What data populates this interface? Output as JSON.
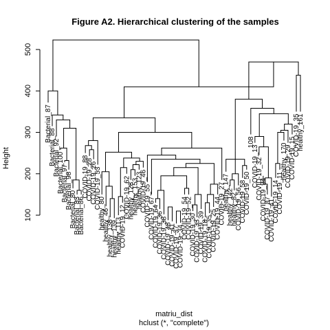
{
  "chart_data": {
    "type": "dendrogram",
    "title": "Figure A2. Hierarchical clustering of the samples",
    "xlabel": "matriu_dist",
    "sublabel": "hclust (*, \"complete\")",
    "ylabel": "Height",
    "ylim": [
      100,
      500
    ],
    "yticks": [
      100,
      200,
      300,
      400,
      500
    ],
    "grid": false,
    "leaves": [
      {
        "label": "Bacterial_87",
        "h": 372
      },
      {
        "label": "Bacterial_88",
        "h": 315
      },
      {
        "label": "Bacterial_92",
        "h": 290
      },
      {
        "label": "Bacterial_100",
        "h": 258
      },
      {
        "label": "Bacterial_97",
        "h": 228
      },
      {
        "label": "Bacterial_98",
        "h": 210
      },
      {
        "label": "Bacterial_80",
        "h": 165
      },
      {
        "label": "Bacterial_83",
        "h": 150
      },
      {
        "label": "Bacterial_86",
        "h": 150
      },
      {
        "label": "COVID-19_88",
        "h": 250
      },
      {
        "label": "COVID-19_28",
        "h": 243
      },
      {
        "label": "COVID-19_26",
        "h": 235
      },
      {
        "label": "COVID-19_53",
        "h": 222
      },
      {
        "label": "healthy_80",
        "h": 150
      },
      {
        "label": "healthy_46",
        "h": 122
      },
      {
        "label": "healthy_138",
        "h": 95
      },
      {
        "label": "healthy_139",
        "h": 93
      },
      {
        "label": "healthy_113",
        "h": 100
      },
      {
        "label": "COVID-19_12",
        "h": 130
      },
      {
        "label": "COVID-19_62",
        "h": 200
      },
      {
        "label": "healthy_128",
        "h": 185
      },
      {
        "label": "healthy_153",
        "h": 195
      },
      {
        "label": "healthy_123",
        "h": 210
      },
      {
        "label": "COVID-19_46",
        "h": 215
      },
      {
        "label": "COVID-19_55",
        "h": 180
      },
      {
        "label": "COVID-19_67",
        "h": 150
      },
      {
        "label": "COVID-19_64",
        "h": 130
      },
      {
        "label": "COVID-19_36",
        "h": 115
      },
      {
        "label": "COVID-19_38",
        "h": 102
      },
      {
        "label": "COVID-19_48",
        "h": 88
      },
      {
        "label": "COVID-19_41",
        "h": 85
      },
      {
        "label": "COVID-19_37",
        "h": 80
      },
      {
        "label": "COVID-19_34",
        "h": 82
      },
      {
        "label": "COVID-19_54",
        "h": 150
      },
      {
        "label": "COVID-19_52",
        "h": 150
      },
      {
        "label": "COVID-19_30",
        "h": 110
      },
      {
        "label": "COVID-19_33",
        "h": 95
      },
      {
        "label": "COVID-19_39",
        "h": 115
      },
      {
        "label": "COVID-19_18",
        "h": 95
      },
      {
        "label": "COVID-19_35",
        "h": 105
      },
      {
        "label": "COVID-19_25",
        "h": 120
      },
      {
        "label": "COVID-19_44",
        "h": 150
      },
      {
        "label": "COVID-19_27",
        "h": 185
      },
      {
        "label": "healthy_147",
        "h": 205
      },
      {
        "label": "healthy_142",
        "h": 170
      },
      {
        "label": "healthy_82",
        "h": 160
      },
      {
        "label": "COVID-19_56",
        "h": 172
      },
      {
        "label": "COVID-19_58",
        "h": 190
      },
      {
        "label": "COVID-19_50",
        "h": 210
      },
      {
        "label": "108",
        "h": 295
      },
      {
        "label": "COVID-19_13",
        "h": 275
      },
      {
        "label": "COVID-19_32",
        "h": 245
      },
      {
        "label": "COVID-19_94",
        "h": 195
      },
      {
        "label": "COVID-19_87",
        "h": 150
      },
      {
        "label": "COVID-19_41",
        "h": 145
      },
      {
        "label": "COVID-19_14",
        "h": 190
      },
      {
        "label": "COVID-19_11",
        "h": 210
      },
      {
        "label": "healthy_170",
        "h": 280
      },
      {
        "label": "COVID-19_29",
        "h": 275
      },
      {
        "label": "COVID-19_15",
        "h": 295
      },
      {
        "label": "COVID-19_35",
        "h": 350
      },
      {
        "label": "healthy_161",
        "h": 350
      }
    ],
    "merges": [
      {
        "a": "l0",
        "b": "l1",
        "h": 387
      },
      {
        "a": "m0",
        "b": "l2",
        "h": 400
      }
    ]
  }
}
